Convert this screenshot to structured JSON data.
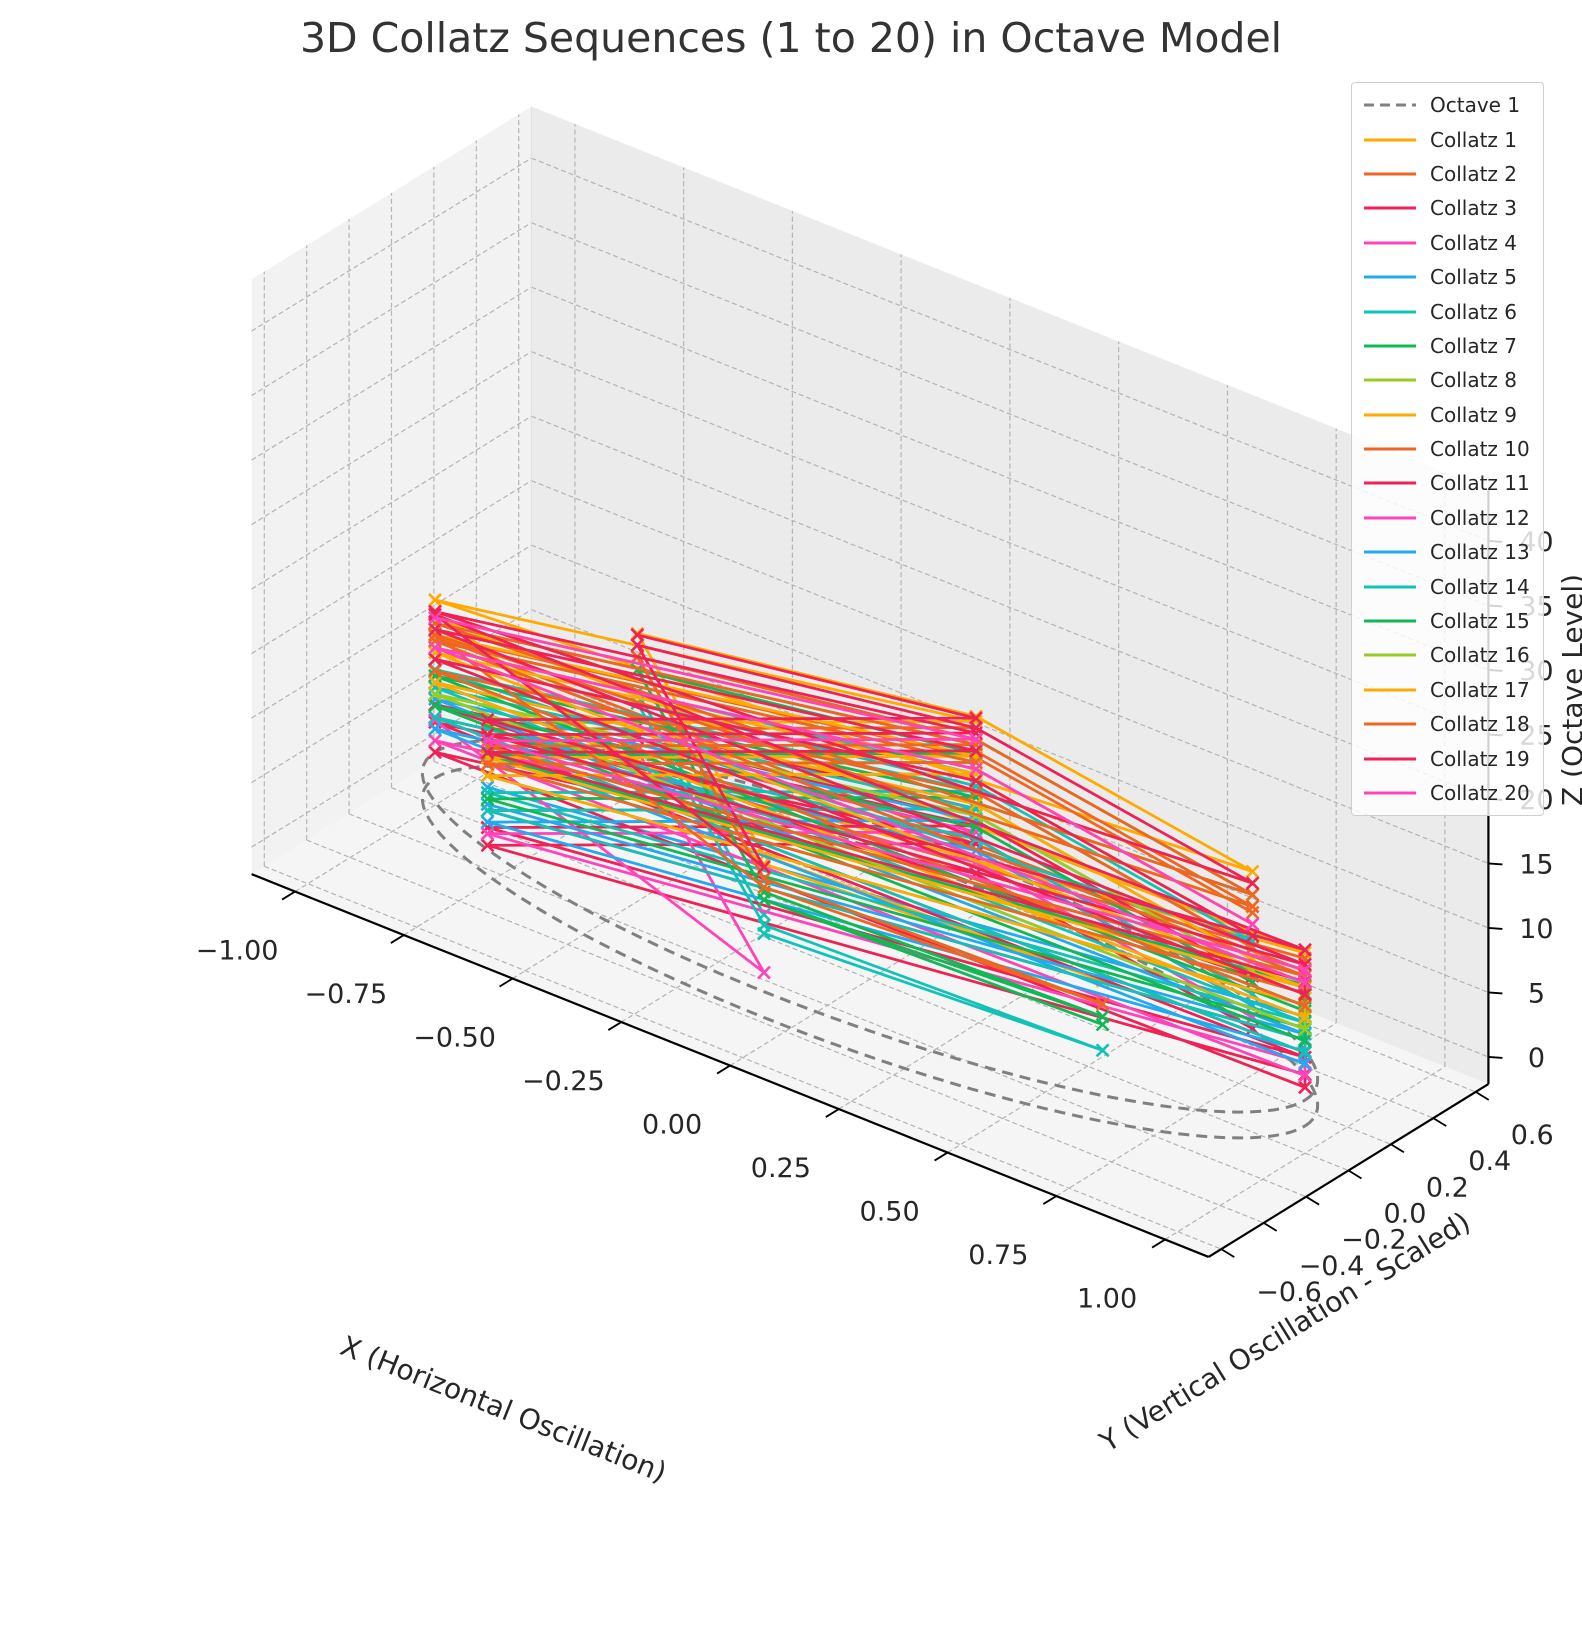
{
  "chart_data": {
    "type": "line",
    "projection": "3d",
    "title": "3D Collatz Sequences (1 to 20) in Octave Model",
    "xlabel": "X (Horizontal Oscillation)",
    "ylabel": "Y (Vertical Oscillation - Scaled)",
    "zlabel": "Z (Octave Level)",
    "xlim": [
      -1.0,
      1.0
    ],
    "ylim": [
      -0.6,
      0.6
    ],
    "zlim": [
      0,
      42
    ],
    "x_ticks": [
      "−1.00",
      "−0.75",
      "−0.50",
      "−0.25",
      "0.00",
      "0.25",
      "0.50",
      "0.75",
      "1.00"
    ],
    "y_ticks": [
      "−0.6",
      "−0.4",
      "−0.2",
      "0.0",
      "0.2",
      "0.4",
      "0.6"
    ],
    "z_ticks": [
      "0",
      "5",
      "10",
      "15",
      "20",
      "25",
      "30",
      "35",
      "40"
    ],
    "grid": true,
    "legend_position": "top-right",
    "marker": "x",
    "colors": [
      "#ffaa00",
      "#ee6622",
      "#ee2255",
      "#ff44bb",
      "#22aaee",
      "#11c2b6",
      "#11b855",
      "#99cc22"
    ],
    "octave": {
      "name": "Octave 1",
      "color": "#808080",
      "style": "dashed",
      "radius": 1.0,
      "y_scale": 0.5,
      "levels": [
        0,
        2
      ]
    },
    "series": [
      {
        "name": "Octave 1"
      },
      {
        "name": "Collatz 1",
        "start": 1
      },
      {
        "name": "Collatz 2",
        "start": 2
      },
      {
        "name": "Collatz 3",
        "start": 3
      },
      {
        "name": "Collatz 4",
        "start": 4
      },
      {
        "name": "Collatz 5",
        "start": 5
      },
      {
        "name": "Collatz 6",
        "start": 6
      },
      {
        "name": "Collatz 7",
        "start": 7
      },
      {
        "name": "Collatz 8",
        "start": 8
      },
      {
        "name": "Collatz 9",
        "start": 9
      },
      {
        "name": "Collatz 10",
        "start": 10
      },
      {
        "name": "Collatz 11",
        "start": 11
      },
      {
        "name": "Collatz 12",
        "start": 12
      },
      {
        "name": "Collatz 13",
        "start": 13
      },
      {
        "name": "Collatz 14",
        "start": 14
      },
      {
        "name": "Collatz 15",
        "start": 15
      },
      {
        "name": "Collatz 16",
        "start": 16
      },
      {
        "name": "Collatz 17",
        "start": 17
      },
      {
        "name": "Collatz 18",
        "start": 18
      },
      {
        "name": "Collatz 19",
        "start": 19
      },
      {
        "name": "Collatz 20",
        "start": 20
      }
    ]
  }
}
